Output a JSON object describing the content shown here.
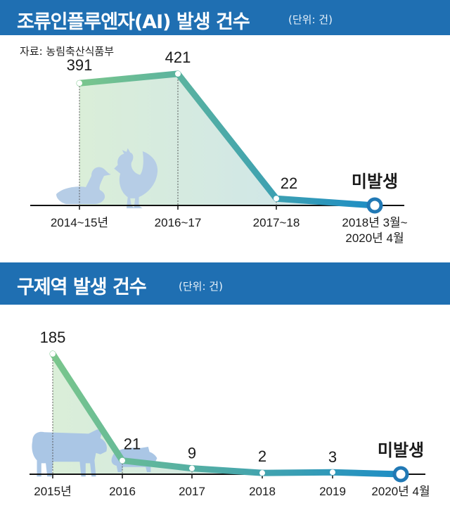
{
  "charts": [
    {
      "title": "조류인플루엔자(AI) 발생 건수",
      "unit": "(단위: 건)",
      "source": "자료: 농림축산식품부"
    },
    {
      "title": "구제역 발생 건수",
      "unit": "(단위: 건)"
    }
  ],
  "icons": [
    "duck-icon",
    "rooster-icon",
    "cow-icon",
    "pig-icon"
  ],
  "colors": {
    "banner": "#1f6fb2",
    "line_start": "#7ac68c",
    "line_end": "#1d8dc5",
    "end_marker": "#2179b5",
    "fill": "#cfe6de"
  },
  "chart_data": [
    {
      "type": "line",
      "title": "조류인플루엔자(AI) 발생 건수",
      "categories": [
        "2014~15년",
        "2016~17",
        "2017~18",
        "2018년 3월~\n2020년 4월"
      ],
      "values": [
        391,
        421,
        22,
        0
      ],
      "data_labels": [
        "391",
        "421",
        "22",
        "미발생"
      ],
      "ylim": [
        0,
        450
      ],
      "grid": false,
      "legend": "none"
    },
    {
      "type": "line",
      "title": "구제역 발생 건수",
      "categories": [
        "2015년",
        "2016",
        "2017",
        "2018",
        "2019",
        "2020년 4월"
      ],
      "values": [
        185,
        21,
        9,
        2,
        3,
        0
      ],
      "data_labels": [
        "185",
        "21",
        "9",
        "2",
        "3",
        "미발생"
      ],
      "ylim": [
        0,
        200
      ],
      "grid": false,
      "legend": "none"
    }
  ]
}
